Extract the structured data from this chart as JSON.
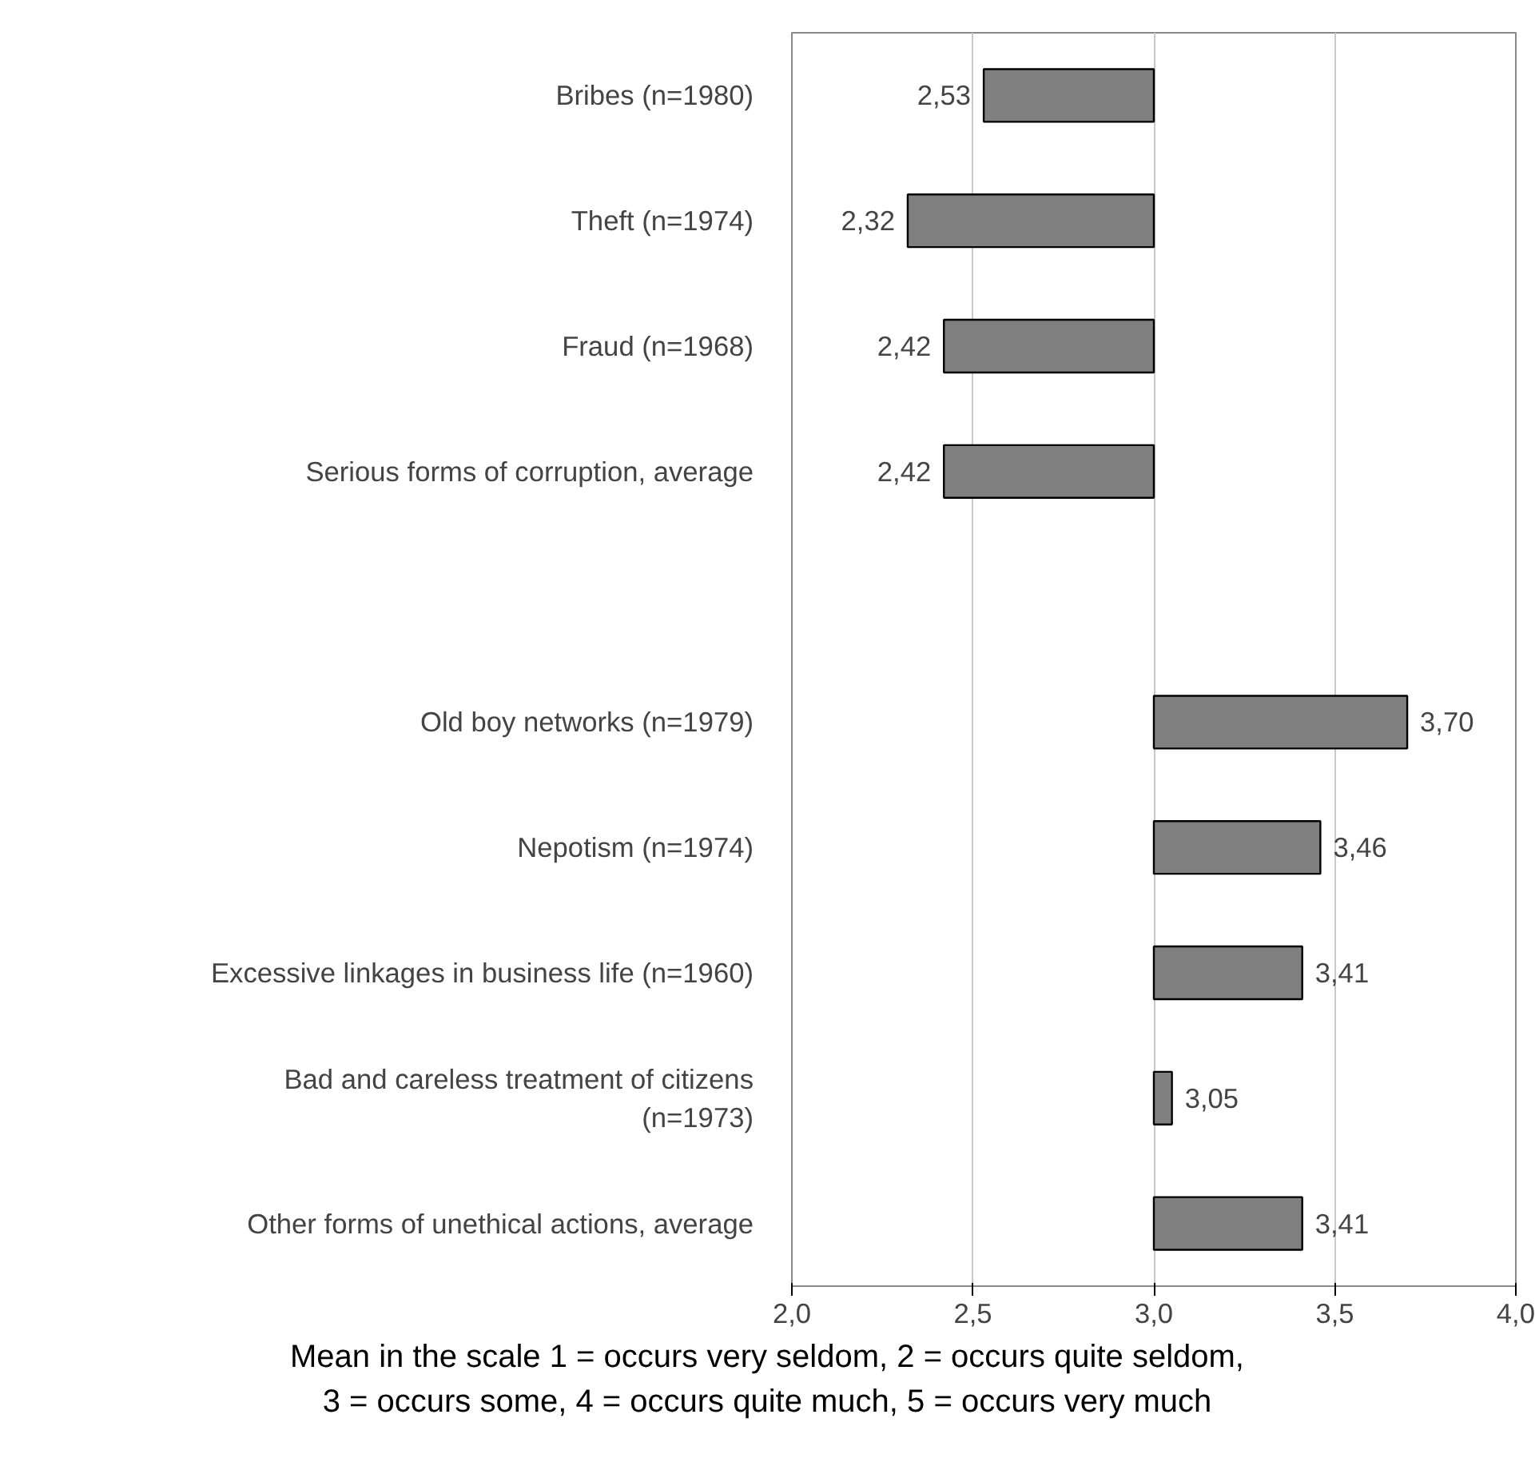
{
  "chart_data": {
    "type": "bar",
    "orientation": "horizontal",
    "categories": [
      "Bribes (n=1980)",
      "Theft (n=1974)",
      "Fraud (n=1968)",
      "Serious forms of corruption, average",
      null,
      "Old boy networks (n=1979)",
      "Nepotism (n=1974)",
      "Excessive linkages in business life (n=1960)",
      "Bad and careless treatment of citizens\n(n=1973)",
      "Other forms of unethical actions, average"
    ],
    "base": [
      3,
      3,
      3,
      3,
      null,
      3,
      3,
      3,
      3,
      3
    ],
    "values": [
      -0.47,
      -0.68,
      -0.58,
      -0.58,
      null,
      0.7,
      0.46,
      0.41,
      0.05,
      0.41
    ],
    "value_labels": [
      "2,53",
      "2,32",
      "2,42",
      "2,42",
      null,
      "3,70",
      "3,46",
      "3,41",
      "3,05",
      "3,41"
    ],
    "color": "#808080",
    "xlim": [
      2,
      4
    ],
    "xticks": [
      {
        "value": 2,
        "label": "2,0"
      },
      {
        "value": 2.5,
        "label": "2,5"
      },
      {
        "value": 3,
        "label": "3,0"
      },
      {
        "value": 3.5,
        "label": "3,5"
      },
      {
        "value": 4,
        "label": "4,0"
      }
    ],
    "grid": "x",
    "xlabel": "Mean in the scale 1 = occurs very seldom, 2 = occurs quite seldom,\n3 = occurs some, 4 = occurs quite much, 5 = occurs very much"
  }
}
